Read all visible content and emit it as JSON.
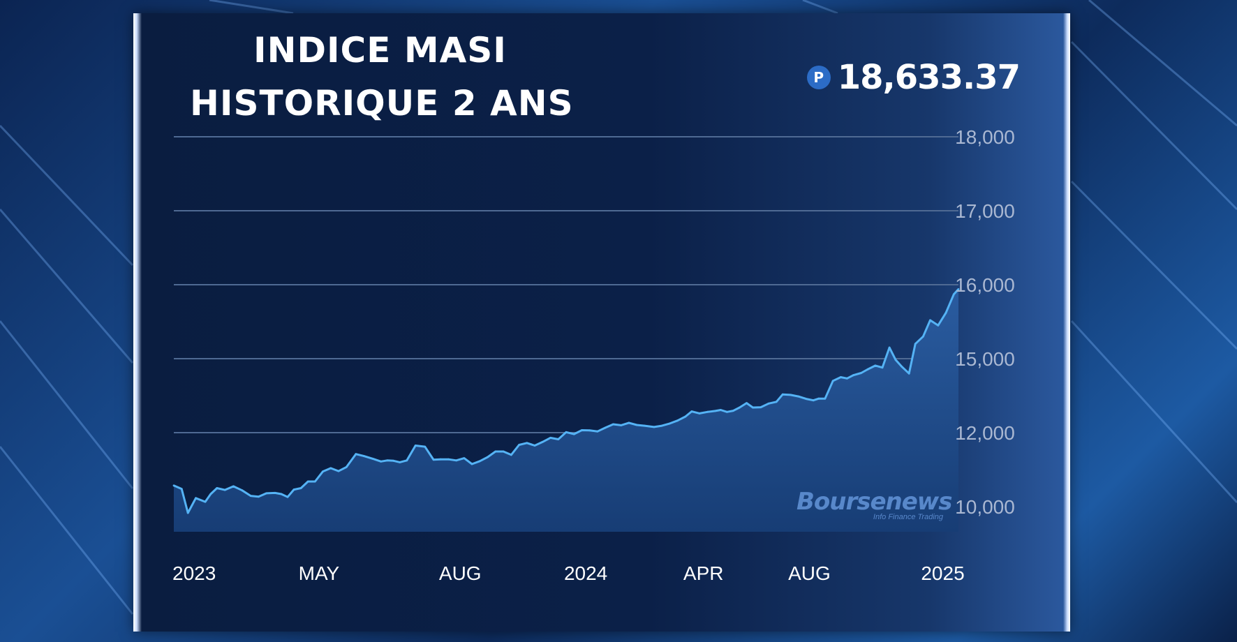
{
  "title_lines": [
    "INDICE MASI",
    "HISTORIQUE 2 ANS"
  ],
  "price": {
    "icon": "P",
    "value": "18,633.37"
  },
  "watermark": {
    "name": "Boursenews",
    "tagline": "Info Finance Trading"
  },
  "colors": {
    "line": "#55b3f5",
    "area_top": "#2a5ca0",
    "area_bottom": "#173d75",
    "grid": "#4f6a93"
  },
  "chart_data": {
    "type": "area",
    "title": "INDICE MASI HISTORIQUE 2 ANS",
    "y_ticks": [
      {
        "label": "10,000",
        "value": 10000
      },
      {
        "label": "12,000",
        "value": 12000
      },
      {
        "label": "15,000",
        "value": 15000
      },
      {
        "label": "16,000",
        "value": 16000
      },
      {
        "label": "17,000",
        "value": 17000
      },
      {
        "label": "18,000",
        "value": 18000
      }
    ],
    "x_ticks": [
      {
        "label": "2023",
        "at": 0.0
      },
      {
        "label": "MAY",
        "at": 0.185
      },
      {
        "label": "AUG",
        "at": 0.365
      },
      {
        "label": "2024",
        "at": 0.525
      },
      {
        "label": "APR",
        "at": 0.675
      },
      {
        "label": "AUG",
        "at": 0.81
      },
      {
        "label": "2025",
        "at": 0.98
      }
    ],
    "grid": true,
    "series": [
      {
        "values": [
          [
            0.0,
            10570
          ],
          [
            0.01,
            10480
          ],
          [
            0.018,
            9830
          ],
          [
            0.028,
            10230
          ],
          [
            0.04,
            10130
          ],
          [
            0.047,
            10340
          ],
          [
            0.055,
            10500
          ],
          [
            0.065,
            10450
          ],
          [
            0.076,
            10550
          ],
          [
            0.087,
            10440
          ],
          [
            0.098,
            10290
          ],
          [
            0.108,
            10270
          ],
          [
            0.118,
            10360
          ],
          [
            0.129,
            10370
          ],
          [
            0.137,
            10340
          ],
          [
            0.145,
            10260
          ],
          [
            0.153,
            10460
          ],
          [
            0.162,
            10500
          ],
          [
            0.171,
            10680
          ],
          [
            0.18,
            10680
          ],
          [
            0.19,
            10950
          ],
          [
            0.2,
            11040
          ],
          [
            0.21,
            10960
          ],
          [
            0.22,
            11070
          ],
          [
            0.232,
            11420
          ],
          [
            0.242,
            11370
          ],
          [
            0.254,
            11290
          ],
          [
            0.264,
            11220
          ],
          [
            0.272,
            11250
          ],
          [
            0.28,
            11240
          ],
          [
            0.288,
            11200
          ],
          [
            0.297,
            11250
          ],
          [
            0.308,
            11650
          ],
          [
            0.32,
            11620
          ],
          [
            0.331,
            11270
          ],
          [
            0.34,
            11280
          ],
          [
            0.35,
            11280
          ],
          [
            0.36,
            11250
          ],
          [
            0.37,
            11310
          ],
          [
            0.38,
            11150
          ],
          [
            0.39,
            11230
          ],
          [
            0.4,
            11340
          ],
          [
            0.41,
            11490
          ],
          [
            0.42,
            11490
          ],
          [
            0.43,
            11400
          ],
          [
            0.44,
            11670
          ],
          [
            0.45,
            11720
          ],
          [
            0.46,
            11650
          ],
          [
            0.47,
            11750
          ],
          [
            0.48,
            11860
          ],
          [
            0.49,
            11820
          ],
          [
            0.5,
            12020
          ],
          [
            0.51,
            11960
          ],
          [
            0.52,
            12100
          ],
          [
            0.53,
            12090
          ],
          [
            0.54,
            12050
          ],
          [
            0.55,
            12200
          ],
          [
            0.56,
            12340
          ],
          [
            0.57,
            12300
          ],
          [
            0.58,
            12400
          ],
          [
            0.59,
            12310
          ],
          [
            0.6,
            12280
          ],
          [
            0.612,
            12230
          ],
          [
            0.622,
            12280
          ],
          [
            0.632,
            12370
          ],
          [
            0.642,
            12490
          ],
          [
            0.652,
            12650
          ],
          [
            0.66,
            12860
          ],
          [
            0.67,
            12780
          ],
          [
            0.68,
            12840
          ],
          [
            0.69,
            12880
          ],
          [
            0.697,
            12920
          ],
          [
            0.705,
            12840
          ],
          [
            0.713,
            12890
          ],
          [
            0.721,
            13020
          ],
          [
            0.73,
            13200
          ],
          [
            0.738,
            13020
          ],
          [
            0.748,
            13030
          ],
          [
            0.758,
            13180
          ],
          [
            0.768,
            13250
          ],
          [
            0.776,
            13550
          ],
          [
            0.786,
            13530
          ],
          [
            0.796,
            13470
          ],
          [
            0.806,
            13370
          ],
          [
            0.815,
            13310
          ],
          [
            0.822,
            13380
          ],
          [
            0.83,
            13380
          ],
          [
            0.84,
            14100
          ],
          [
            0.85,
            14250
          ],
          [
            0.858,
            14200
          ],
          [
            0.866,
            14330
          ],
          [
            0.876,
            14420
          ],
          [
            0.884,
            14560
          ],
          [
            0.894,
            14720
          ],
          [
            0.903,
            14640
          ],
          [
            0.912,
            15150
          ],
          [
            0.92,
            14950
          ],
          [
            0.928,
            14670
          ],
          [
            0.937,
            14400
          ],
          [
            0.945,
            15200
          ],
          [
            0.955,
            15300
          ],
          [
            0.964,
            15520
          ],
          [
            0.974,
            15450
          ],
          [
            0.984,
            15620
          ],
          [
            0.994,
            15870
          ],
          [
            1.0,
            15940
          ]
        ]
      }
    ]
  }
}
